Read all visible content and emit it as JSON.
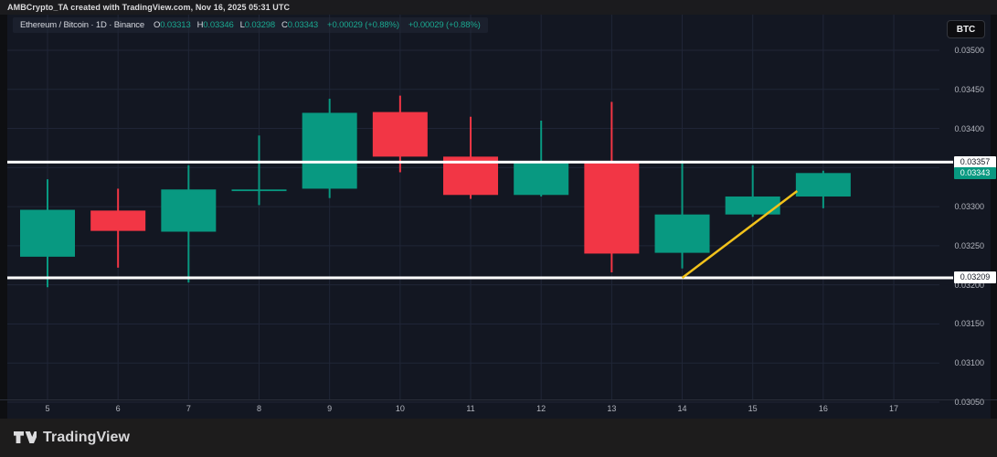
{
  "top_bar": {
    "attribution": "AMBCrypto_TA created with TradingView.com, Nov 16, 2025 05:31 UTC"
  },
  "legend": {
    "title": "Ethereum / Bitcoin · 1D · Binance",
    "ohlc": [
      {
        "k": "O",
        "v": "0.03313"
      },
      {
        "k": "H",
        "v": "0.03346"
      },
      {
        "k": "L",
        "v": "0.03298"
      },
      {
        "k": "C",
        "v": "0.03343"
      }
    ],
    "changes": [
      "+0.00029 (+0.88%)",
      "+0.00029 (+0.88%)"
    ]
  },
  "currency_button": {
    "label": "BTC"
  },
  "price_axis": {
    "ticks": [
      {
        "label": "0.03500",
        "price": 0.035
      },
      {
        "label": "0.03450",
        "price": 0.0345
      },
      {
        "label": "0.03400",
        "price": 0.034
      },
      {
        "label": "0.03300",
        "price": 0.033
      },
      {
        "label": "0.03250",
        "price": 0.0325
      },
      {
        "label": "0.03200",
        "price": 0.032
      },
      {
        "label": "0.03150",
        "price": 0.0315
      },
      {
        "label": "0.03100",
        "price": 0.031
      },
      {
        "label": "0.03050",
        "price": 0.0305
      }
    ],
    "tags": [
      {
        "label": "0.03357",
        "price": 0.03357,
        "bg": "#ffffff",
        "fg": "#131722",
        "name": "price-tag-resistance"
      },
      {
        "label": "0.03343",
        "price": 0.03343,
        "bg": "#089981",
        "fg": "#ffffff",
        "name": "price-tag-last"
      },
      {
        "label": "0.03209",
        "price": 0.03209,
        "bg": "#ffffff",
        "fg": "#131722",
        "name": "price-tag-support"
      }
    ]
  },
  "time_axis": {
    "ticks": [
      "5",
      "6",
      "7",
      "8",
      "9",
      "10",
      "11",
      "12",
      "13",
      "14",
      "15",
      "16",
      "17"
    ]
  },
  "chart_data": {
    "type": "candlestick",
    "title": "Ethereum / Bitcoin · 1D · Binance",
    "ylabel": "BTC",
    "ylim": [
      0.0305,
      0.035
    ],
    "x_days": [
      5,
      6,
      7,
      8,
      9,
      10,
      11,
      12,
      13,
      14,
      15,
      16,
      17
    ],
    "grid_prices": [
      0.035,
      0.0345,
      0.034,
      0.0335,
      0.033,
      0.0325,
      0.032,
      0.0315,
      0.031,
      0.0305
    ],
    "candles": [
      {
        "day": 5,
        "open": 0.03236,
        "high": 0.03335,
        "low": 0.03197,
        "close": 0.03296
      },
      {
        "day": 6,
        "open": 0.03295,
        "high": 0.03323,
        "low": 0.03222,
        "close": 0.03269
      },
      {
        "day": 7,
        "open": 0.03268,
        "high": 0.03353,
        "low": 0.03203,
        "close": 0.03322
      },
      {
        "day": 8,
        "open": 0.03322,
        "high": 0.03391,
        "low": 0.03302,
        "close": 0.03322
      },
      {
        "day": 9,
        "open": 0.03323,
        "high": 0.03438,
        "low": 0.03311,
        "close": 0.0342
      },
      {
        "day": 10,
        "open": 0.03421,
        "high": 0.03442,
        "low": 0.03344,
        "close": 0.03364
      },
      {
        "day": 11,
        "open": 0.03364,
        "high": 0.03415,
        "low": 0.0331,
        "close": 0.03315
      },
      {
        "day": 12,
        "open": 0.03315,
        "high": 0.0341,
        "low": 0.03313,
        "close": 0.03357
      },
      {
        "day": 13,
        "open": 0.03358,
        "high": 0.03434,
        "low": 0.03216,
        "close": 0.0324
      },
      {
        "day": 14,
        "open": 0.03241,
        "high": 0.03359,
        "low": 0.03221,
        "close": 0.0329
      },
      {
        "day": 15,
        "open": 0.0329,
        "high": 0.03353,
        "low": 0.03287,
        "close": 0.03313
      },
      {
        "day": 16,
        "open": 0.03313,
        "high": 0.03346,
        "low": 0.03298,
        "close": 0.03343
      }
    ],
    "levels": [
      {
        "price": 0.03357,
        "label": "0.03357"
      },
      {
        "price": 0.03209,
        "label": "0.03209"
      }
    ],
    "trendline": {
      "from": {
        "day": 14.0,
        "price": 0.03209
      },
      "to": {
        "day": 15.63,
        "price": 0.0332
      }
    },
    "last_price": {
      "label": "0.03343",
      "direction": "up"
    },
    "colors": {
      "up": "#089981",
      "down": "#f23645",
      "trendline": "#f2c21b",
      "level": "#ffffff",
      "grid": "#202637"
    }
  },
  "footer": {
    "brand": "TradingView"
  }
}
